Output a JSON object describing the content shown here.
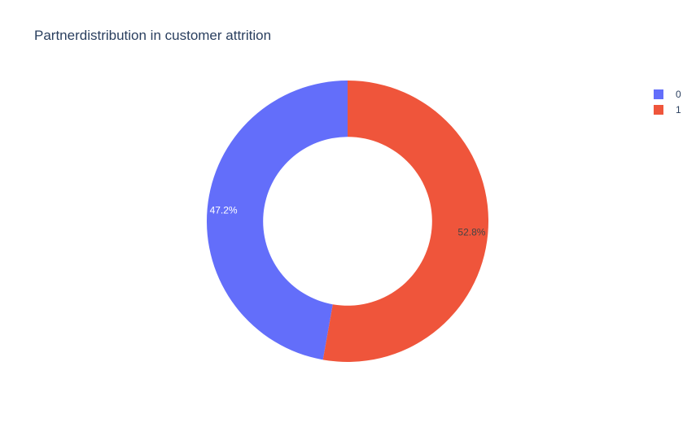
{
  "chart_data": {
    "type": "pie",
    "hole": 0.6,
    "title": "Partnerdistribution in customer attrition",
    "labels": [
      "0",
      "1"
    ],
    "values": [
      47.2,
      52.8
    ],
    "text_labels": [
      "47.2%",
      "52.8%"
    ],
    "colors": [
      "#636efa",
      "#ef553b"
    ],
    "text_colors": [
      "#ffffff",
      "#444444"
    ],
    "direction": "counterclockwise",
    "legend_position": "top-right"
  }
}
